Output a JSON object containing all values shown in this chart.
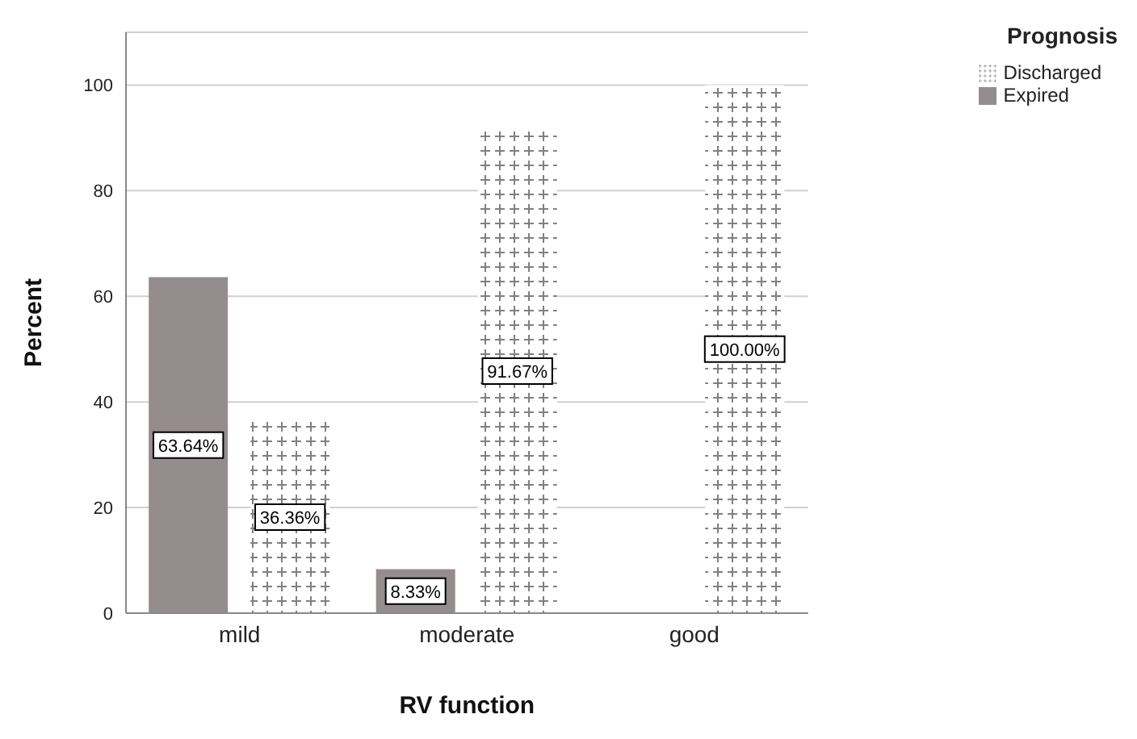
{
  "chart_data": {
    "type": "bar",
    "xlabel": "RV function",
    "ylabel": "Percent",
    "legend_title": "Prognosis",
    "categories": [
      "mild",
      "moderate",
      "good"
    ],
    "series": [
      {
        "name": "Expired",
        "color": "#958d8d",
        "values": [
          63.64,
          8.33,
          null
        ],
        "value_labels": [
          "63.64%",
          "8.33%",
          null
        ]
      },
      {
        "name": "Discharged",
        "color": "#808080",
        "values": [
          36.36,
          91.67,
          100
        ],
        "value_labels": [
          "36.36%",
          "91.67%",
          "100.00%"
        ]
      }
    ],
    "ylim": [
      0,
      110
    ],
    "yticks": [
      0,
      20,
      40,
      60,
      80,
      100
    ],
    "grid": "y",
    "legend": "top right"
  }
}
